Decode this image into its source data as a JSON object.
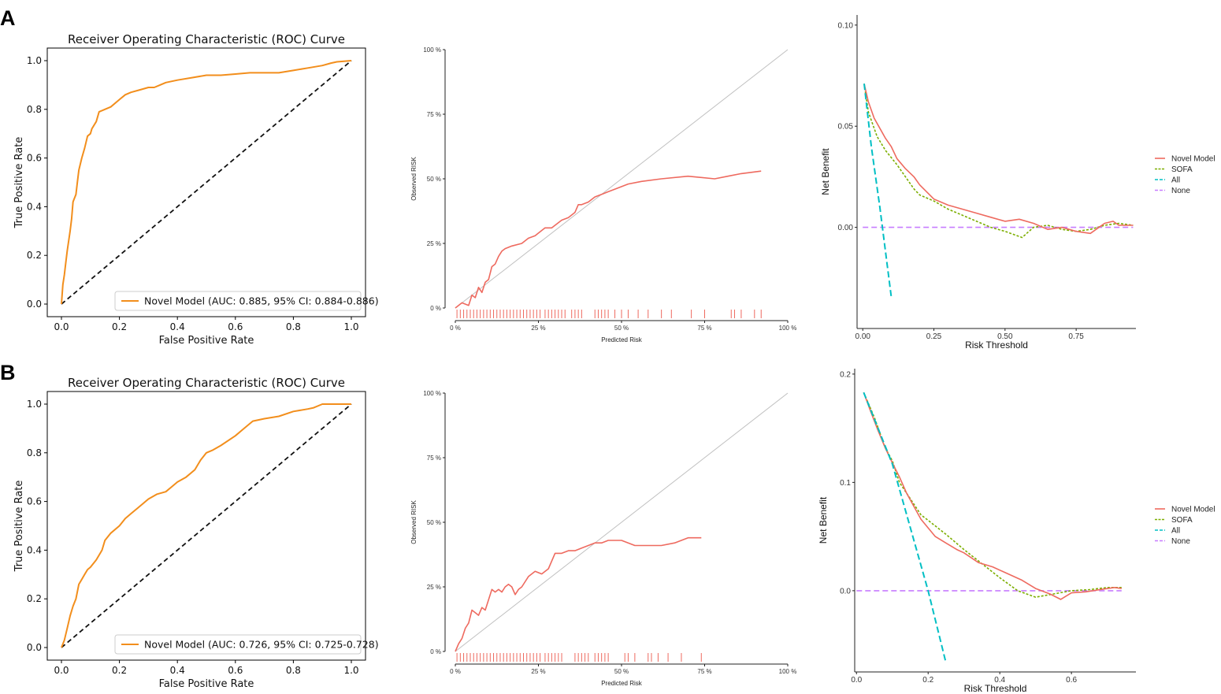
{
  "panels": [
    {
      "letter": "A"
    },
    {
      "letter": "B"
    }
  ],
  "chart_data": [
    {
      "id": "roc-a",
      "type": "line",
      "title": "Receiver Operating Characteristic (ROC) Curve",
      "xlabel": "False Positive Rate",
      "ylabel": "True Positive Rate",
      "xlim": [
        0,
        1
      ],
      "ylim": [
        0,
        1
      ],
      "xticks": [
        "0.0",
        "0.2",
        "0.4",
        "0.6",
        "0.8",
        "1.0"
      ],
      "yticks": [
        "0.0",
        "0.2",
        "0.4",
        "0.6",
        "0.8",
        "1.0"
      ],
      "legend": "Novel Model (AUC: 0.885, 95% CI: 0.884-0.886)",
      "legend_position": "lower-right",
      "colors": {
        "curve": "#f28e1c",
        "diagonal": "#111111"
      },
      "series": [
        {
          "name": "Novel Model",
          "x": [
            0,
            0.005,
            0.01,
            0.015,
            0.02,
            0.03,
            0.035,
            0.04,
            0.05,
            0.055,
            0.06,
            0.07,
            0.08,
            0.09,
            0.1,
            0.105,
            0.12,
            0.13,
            0.15,
            0.17,
            0.2,
            0.22,
            0.24,
            0.27,
            0.3,
            0.32,
            0.34,
            0.36,
            0.4,
            0.45,
            0.5,
            0.55,
            0.6,
            0.65,
            0.7,
            0.75,
            0.8,
            0.85,
            0.9,
            0.93,
            0.95,
            1.0
          ],
          "y": [
            0,
            0.08,
            0.12,
            0.17,
            0.22,
            0.3,
            0.35,
            0.42,
            0.45,
            0.5,
            0.55,
            0.6,
            0.64,
            0.69,
            0.7,
            0.72,
            0.75,
            0.79,
            0.8,
            0.81,
            0.84,
            0.86,
            0.87,
            0.88,
            0.89,
            0.89,
            0.9,
            0.91,
            0.92,
            0.93,
            0.94,
            0.94,
            0.945,
            0.95,
            0.95,
            0.95,
            0.96,
            0.97,
            0.98,
            0.99,
            0.995,
            1.0
          ]
        },
        {
          "name": "Chance",
          "x": [
            0,
            1
          ],
          "y": [
            0,
            1
          ]
        }
      ]
    },
    {
      "id": "cal-a",
      "type": "line",
      "xlabel": "Predicted Risk",
      "ylabel": "Observed RISK",
      "xlim": [
        0,
        100
      ],
      "ylim": [
        0,
        100
      ],
      "xticks": [
        "0 %",
        "25 %",
        "50 %",
        "75 %",
        "100 %"
      ],
      "yticks": [
        "0 %",
        "25 %",
        "50 %",
        "75 %",
        "100 %"
      ],
      "colors": {
        "curve": "#ee6a5f",
        "diagonal": "#c0c0c0",
        "rug": "#ee6a5f"
      },
      "series": [
        {
          "name": "Calibration",
          "x": [
            0,
            2,
            4,
            5,
            6,
            7,
            8,
            9,
            10,
            11,
            12,
            13,
            14,
            15,
            17,
            20,
            22,
            24,
            25,
            27,
            29,
            30,
            32,
            34,
            36,
            37,
            38,
            40,
            42,
            44,
            46,
            48,
            52,
            56,
            62,
            70,
            78,
            82,
            86,
            92
          ],
          "y": [
            0,
            2,
            1,
            5,
            4,
            8,
            6,
            10,
            11,
            16,
            17,
            20,
            22,
            23,
            24,
            25,
            27,
            28,
            29,
            31,
            31,
            32,
            34,
            35,
            37,
            40,
            40,
            41,
            43,
            44,
            45,
            46,
            48,
            49,
            50,
            51,
            50,
            51,
            52,
            53
          ]
        },
        {
          "name": "Ideal",
          "x": [
            0,
            100
          ],
          "y": [
            0,
            100
          ]
        }
      ],
      "rug": [
        0.5,
        1.5,
        2.5,
        3.5,
        4.5,
        5.5,
        6.5,
        7.5,
        8.5,
        9.5,
        10.5,
        11.5,
        12.5,
        13.5,
        14.5,
        15.5,
        16.5,
        17.5,
        18.5,
        19.5,
        20.5,
        21.5,
        22.5,
        23.5,
        24.5,
        25.5,
        27,
        28,
        29,
        30,
        31,
        32,
        33,
        35,
        36,
        37,
        38,
        42,
        43,
        44,
        45,
        46,
        48,
        50,
        52,
        55,
        58,
        62,
        65,
        71,
        75,
        83,
        84,
        86,
        90,
        92
      ]
    },
    {
      "id": "dca-a",
      "type": "line",
      "xlabel": "Risk Threshold",
      "ylabel": "Net Benefit",
      "xlim": [
        -0.02,
        0.96
      ],
      "ylim": [
        -0.05,
        0.105
      ],
      "xticks": [
        {
          "v": 0,
          "t": "0.00"
        },
        {
          "v": 0.25,
          "t": "0.25"
        },
        {
          "v": 0.5,
          "t": "0.50"
        },
        {
          "v": 0.75,
          "t": "0.75"
        }
      ],
      "yticks": [
        {
          "v": 0,
          "t": "0.00"
        },
        {
          "v": 0.05,
          "t": "0.05"
        },
        {
          "v": 0.1,
          "t": "0.10"
        }
      ],
      "legend": [
        "Novel Model",
        "SOFA",
        "All",
        "None"
      ],
      "colors": {
        "novel": "#ee6a5f",
        "sofa": "#7cae00",
        "all": "#00bfc4",
        "none": "#c77cff"
      },
      "series": [
        {
          "name": "Novel Model",
          "x": [
            0.005,
            0.02,
            0.04,
            0.06,
            0.08,
            0.1,
            0.12,
            0.15,
            0.18,
            0.2,
            0.25,
            0.3,
            0.35,
            0.4,
            0.45,
            0.5,
            0.55,
            0.6,
            0.65,
            0.7,
            0.75,
            0.8,
            0.85,
            0.88,
            0.9,
            0.95
          ],
          "y": [
            0.071,
            0.062,
            0.054,
            0.049,
            0.044,
            0.04,
            0.034,
            0.029,
            0.025,
            0.021,
            0.014,
            0.011,
            0.009,
            0.007,
            0.005,
            0.003,
            0.004,
            0.002,
            -0.001,
            0.0,
            -0.002,
            -0.003,
            0.002,
            0.003,
            0.001,
            0.001
          ]
        },
        {
          "name": "SOFA",
          "x": [
            0.005,
            0.02,
            0.05,
            0.08,
            0.12,
            0.15,
            0.18,
            0.2,
            0.25,
            0.3,
            0.35,
            0.4,
            0.45,
            0.5,
            0.56,
            0.6,
            0.65,
            0.7,
            0.75,
            0.8,
            0.85,
            0.9,
            0.95
          ],
          "y": [
            0.071,
            0.057,
            0.045,
            0.038,
            0.031,
            0.025,
            0.019,
            0.016,
            0.013,
            0.009,
            0.006,
            0.003,
            0.0,
            -0.002,
            -0.005,
            0.0,
            0.001,
            -0.001,
            -0.002,
            -0.001,
            0.001,
            0.002,
            0.001
          ]
        },
        {
          "name": "All",
          "x": [
            0.005,
            0.03,
            0.06,
            0.1
          ],
          "y": [
            0.071,
            0.04,
            0.01,
            -0.034
          ]
        },
        {
          "name": "None",
          "x": [
            0,
            0.95
          ],
          "y": [
            0,
            0
          ]
        }
      ]
    },
    {
      "id": "roc-b",
      "type": "line",
      "title": "Receiver Operating Characteristic (ROC) Curve",
      "xlabel": "False Positive Rate",
      "ylabel": "True Positive Rate",
      "xlim": [
        0,
        1
      ],
      "ylim": [
        0,
        1
      ],
      "xticks": [
        "0.0",
        "0.2",
        "0.4",
        "0.6",
        "0.8",
        "1.0"
      ],
      "yticks": [
        "0.0",
        "0.2",
        "0.4",
        "0.6",
        "0.8",
        "1.0"
      ],
      "legend": "Novel Model (AUC: 0.726, 95% CI: 0.725-0.728)",
      "legend_position": "lower-right",
      "colors": {
        "curve": "#f28e1c",
        "diagonal": "#111111"
      },
      "series": [
        {
          "name": "Novel Model",
          "x": [
            0,
            0.01,
            0.02,
            0.03,
            0.04,
            0.05,
            0.06,
            0.07,
            0.08,
            0.09,
            0.1,
            0.12,
            0.14,
            0.15,
            0.17,
            0.2,
            0.22,
            0.24,
            0.26,
            0.28,
            0.3,
            0.33,
            0.36,
            0.38,
            0.4,
            0.43,
            0.46,
            0.48,
            0.5,
            0.52,
            0.55,
            0.6,
            0.63,
            0.66,
            0.7,
            0.75,
            0.8,
            0.85,
            0.87,
            0.9,
            0.95,
            1.0
          ],
          "y": [
            0,
            0.03,
            0.08,
            0.13,
            0.17,
            0.2,
            0.26,
            0.28,
            0.3,
            0.32,
            0.33,
            0.36,
            0.4,
            0.44,
            0.47,
            0.5,
            0.53,
            0.55,
            0.57,
            0.59,
            0.61,
            0.63,
            0.64,
            0.66,
            0.68,
            0.7,
            0.73,
            0.77,
            0.8,
            0.81,
            0.83,
            0.87,
            0.9,
            0.93,
            0.94,
            0.95,
            0.97,
            0.98,
            0.985,
            1.0,
            1.0,
            1.0
          ]
        },
        {
          "name": "Chance",
          "x": [
            0,
            1
          ],
          "y": [
            0,
            1
          ]
        }
      ]
    },
    {
      "id": "cal-b",
      "type": "line",
      "xlabel": "Predicted Risk",
      "ylabel": "Observed RISK",
      "xlim": [
        0,
        100
      ],
      "ylim": [
        0,
        100
      ],
      "xticks": [
        "0 %",
        "25 %",
        "50 %",
        "75 %",
        "100 %"
      ],
      "yticks": [
        "0 %",
        "25 %",
        "50 %",
        "75 %",
        "100 %"
      ],
      "colors": {
        "curve": "#ee6a5f",
        "diagonal": "#c0c0c0",
        "rug": "#ee6a5f"
      },
      "series": [
        {
          "name": "Calibration",
          "x": [
            0,
            1,
            2,
            3,
            4,
            5,
            6,
            7,
            8,
            9,
            10,
            11,
            12,
            13,
            14,
            15,
            16,
            17,
            18,
            19,
            20,
            22,
            24,
            26,
            28,
            30,
            32,
            34,
            36,
            38,
            40,
            42,
            44,
            46,
            48,
            50,
            54,
            58,
            62,
            66,
            70,
            74
          ],
          "y": [
            0,
            3,
            5,
            9,
            11,
            16,
            15,
            14,
            17,
            16,
            20,
            24,
            23,
            24,
            23,
            25,
            26,
            25,
            22,
            24,
            25,
            29,
            31,
            30,
            32,
            38,
            38,
            39,
            39,
            40,
            41,
            42,
            42,
            43,
            43,
            43,
            41,
            41,
            41,
            42,
            44,
            44
          ]
        },
        {
          "name": "Ideal",
          "x": [
            0,
            100
          ],
          "y": [
            0,
            100
          ]
        }
      ],
      "rug": [
        0.5,
        1.5,
        2.5,
        3.5,
        4.5,
        5.5,
        6.5,
        7.5,
        8.5,
        9.5,
        10.5,
        11.5,
        12.5,
        13.5,
        14.5,
        15.5,
        16.5,
        17.5,
        18.5,
        19.5,
        20.5,
        21.5,
        22.5,
        23.5,
        24.5,
        25.5,
        27,
        28,
        29,
        30,
        31,
        32,
        36,
        37,
        38,
        39,
        40,
        42,
        43,
        44,
        45,
        46,
        51,
        52,
        54,
        58,
        59,
        61,
        64,
        68,
        74
      ]
    },
    {
      "id": "dca-b",
      "type": "line",
      "xlabel": "Risk Threshold",
      "ylabel": "Net Benefit",
      "xlim": [
        -0.005,
        0.78
      ],
      "ylim": [
        -0.075,
        0.205
      ],
      "xticks": [
        {
          "v": 0,
          "t": "0.0"
        },
        {
          "v": 0.2,
          "t": "0.2"
        },
        {
          "v": 0.4,
          "t": "0.4"
        },
        {
          "v": 0.6,
          "t": "0.6"
        }
      ],
      "yticks": [
        {
          "v": 0,
          "t": "0.0"
        },
        {
          "v": 0.1,
          "t": "0.1"
        },
        {
          "v": 0.2,
          "t": "0.2"
        }
      ],
      "legend": [
        "Novel Model",
        "SOFA",
        "All",
        "None"
      ],
      "colors": {
        "novel": "#ee6a5f",
        "sofa": "#7cae00",
        "all": "#00bfc4",
        "none": "#c77cff"
      },
      "series": [
        {
          "name": "Novel Model",
          "x": [
            0.02,
            0.04,
            0.06,
            0.08,
            0.1,
            0.12,
            0.14,
            0.16,
            0.18,
            0.2,
            0.22,
            0.25,
            0.28,
            0.3,
            0.34,
            0.38,
            0.42,
            0.46,
            0.5,
            0.54,
            0.57,
            0.6,
            0.64,
            0.68,
            0.72,
            0.74
          ],
          "y": [
            0.183,
            0.165,
            0.148,
            0.132,
            0.118,
            0.105,
            0.09,
            0.078,
            0.066,
            0.058,
            0.05,
            0.044,
            0.038,
            0.035,
            0.026,
            0.022,
            0.016,
            0.01,
            0.002,
            -0.003,
            -0.008,
            -0.002,
            -0.001,
            0.001,
            0.003,
            0.002
          ]
        },
        {
          "name": "SOFA",
          "x": [
            0.02,
            0.05,
            0.08,
            0.1,
            0.12,
            0.15,
            0.18,
            0.2,
            0.25,
            0.3,
            0.35,
            0.4,
            0.45,
            0.5,
            0.55,
            0.6,
            0.65,
            0.7,
            0.74
          ],
          "y": [
            0.183,
            0.16,
            0.132,
            0.12,
            0.1,
            0.085,
            0.07,
            0.065,
            0.052,
            0.038,
            0.025,
            0.012,
            0.0,
            -0.006,
            -0.003,
            0.0,
            0.001,
            0.003,
            0.003
          ]
        },
        {
          "name": "All",
          "x": [
            0.02,
            0.1,
            0.2,
            0.25
          ],
          "y": [
            0.183,
            0.117,
            0.0,
            -0.067
          ]
        },
        {
          "name": "None",
          "x": [
            0,
            0.74
          ],
          "y": [
            0,
            0
          ]
        }
      ]
    }
  ]
}
